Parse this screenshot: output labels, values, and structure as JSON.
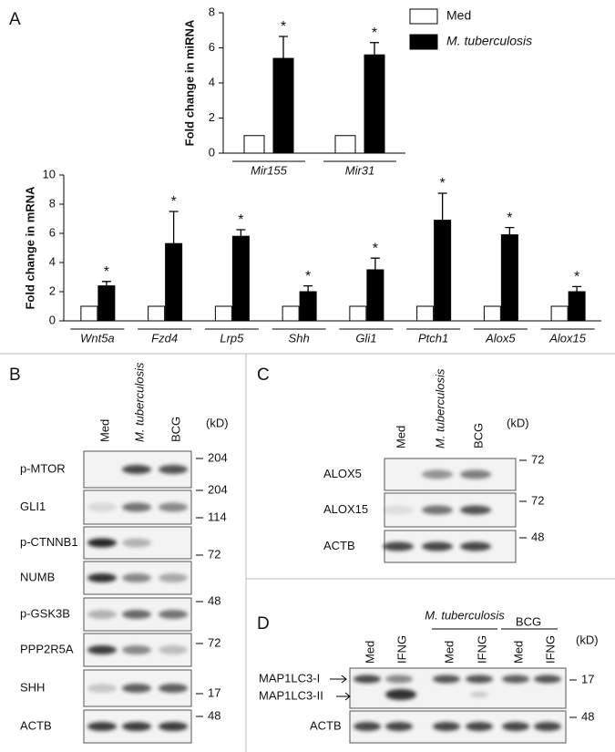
{
  "panel_labels": [
    "A",
    "B",
    "C",
    "D"
  ],
  "chart_data": [
    {
      "type": "bar",
      "ylabel": "Fold change in miRNA",
      "categories": [
        "Mir155",
        "Mir31"
      ],
      "series": [
        {
          "name": "Med",
          "color": "#ffffff",
          "values": [
            1,
            1
          ]
        },
        {
          "name": "M. tuberculosis",
          "color": "#000000",
          "values": [
            5.4,
            5.6
          ],
          "errors": [
            1.25,
            0.7
          ],
          "annotations": [
            "*",
            "*"
          ]
        }
      ],
      "ylim": [
        0,
        8
      ],
      "yticks": [
        0,
        2,
        4,
        6,
        8
      ],
      "legend": "top-right"
    },
    {
      "type": "bar",
      "ylabel": "Fold change in mRNA",
      "categories": [
        "Wnt5a",
        "Fzd4",
        "Lrp5",
        "Shh",
        "Gli1",
        "Ptch1",
        "Alox5",
        "Alox15"
      ],
      "series": [
        {
          "color": "#ffffff",
          "values": [
            1,
            1,
            1,
            1,
            1,
            1,
            1,
            1
          ]
        },
        {
          "color": "#000000",
          "values": [
            2.4,
            5.3,
            5.8,
            2.0,
            3.5,
            6.9,
            5.9,
            2.0
          ],
          "errors": [
            0.3,
            2.2,
            0.45,
            0.4,
            0.8,
            1.85,
            0.5,
            0.35
          ],
          "annotations": [
            "*",
            "*",
            "*",
            "*",
            "*",
            "*",
            "*",
            "*"
          ]
        }
      ],
      "ylim": [
        0,
        10
      ],
      "yticks": [
        0,
        2,
        4,
        6,
        8,
        10
      ]
    }
  ],
  "blots": [
    {
      "lanes": [
        "Med",
        "M. tuberculosis",
        "BCG"
      ],
      "unit": "(kD)",
      "rows": [
        {
          "label": "p-MTOR",
          "markers": [
            204
          ]
        },
        {
          "label": "GLI1",
          "markers": [
            204,
            114
          ]
        },
        {
          "label": "p-CTNNB1",
          "markers": [
            72
          ]
        },
        {
          "label": "NUMB",
          "markers": []
        },
        {
          "label": "p-GSK3B",
          "markers": [
            48
          ]
        },
        {
          "label": "PPP2R5A",
          "markers": [
            72
          ]
        },
        {
          "label": "SHH",
          "markers": [
            17
          ]
        },
        {
          "label": "ACTB",
          "markers": [
            48
          ]
        }
      ]
    },
    {
      "lanes": [
        "Med",
        "M. tuberculosis",
        "BCG"
      ],
      "unit": "(kD)",
      "rows": [
        {
          "label": "ALOX5",
          "markers": [
            72
          ]
        },
        {
          "label": "ALOX15",
          "markers": [
            72
          ]
        },
        {
          "label": "ACTB",
          "markers": [
            48
          ]
        }
      ]
    },
    {
      "groups": [
        "M. tuberculosis",
        "BCG"
      ],
      "lanes": [
        "Med",
        "IFNG",
        "Med",
        "IFNG",
        "Med",
        "IFNG"
      ],
      "unit": "(kD)",
      "rows": [
        {
          "labels": [
            "MAP1LC3-I",
            "MAP1LC3-II"
          ],
          "markers": [
            17
          ]
        },
        {
          "label": "ACTB",
          "markers": [
            48
          ]
        }
      ]
    }
  ]
}
